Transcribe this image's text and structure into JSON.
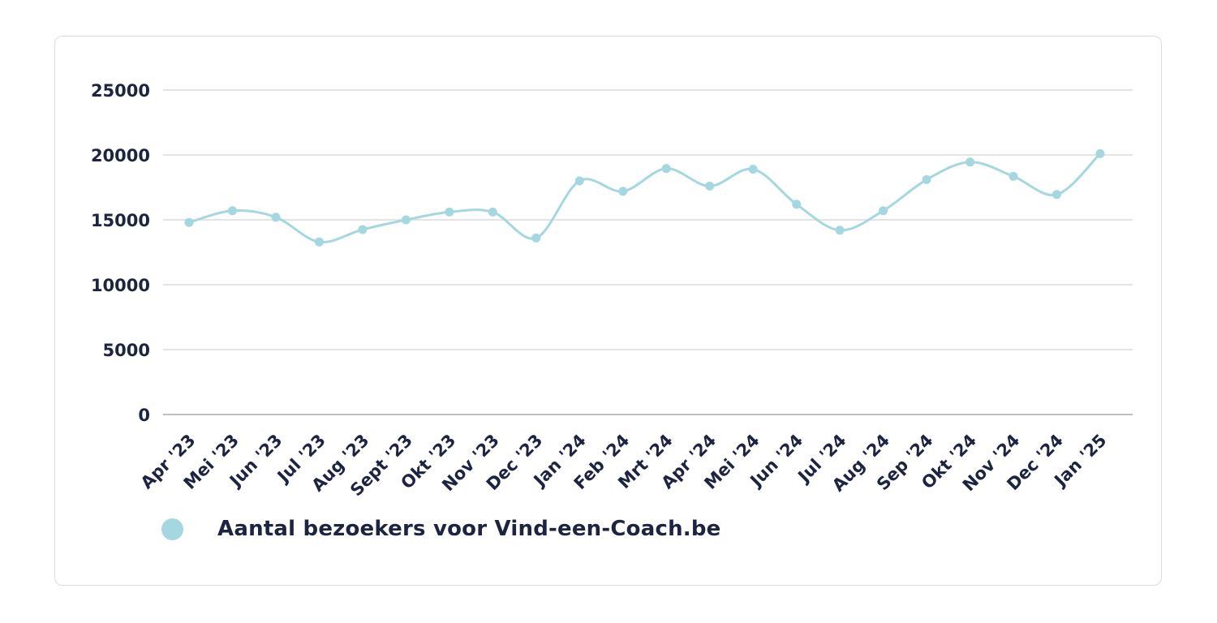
{
  "colors": {
    "line": "#a5d7e0",
    "text": "#1d2442",
    "grid": "#e4e4e4",
    "axis": "#bfbfbf",
    "card_border": "#dcdcdc"
  },
  "legend": {
    "label": "Aantal bezoekers voor Vind-een-Coach.be"
  },
  "chart_data": {
    "type": "line",
    "title": "",
    "xlabel": "",
    "ylabel": "",
    "categories": [
      "Apr '23",
      "Mei '23",
      "Jun '23",
      "Jul '23",
      "Aug '23",
      "Sept '23",
      "Okt '23",
      "Nov '23",
      "Dec '23",
      "Jan '24",
      "Feb '24",
      "Mrt '24",
      "Apr '24",
      "Mei '24",
      "Jun '24",
      "Jul '24",
      "Aug '24",
      "Sep '24",
      "Okt '24",
      "Nov '24",
      "Dec '24",
      "Jan '25"
    ],
    "series": [
      {
        "name": "Aantal bezoekers voor Vind-een-Coach.be",
        "values": [
          14800,
          15700,
          15200,
          13300,
          14250,
          15000,
          15600,
          15600,
          13600,
          18000,
          17200,
          18950,
          17600,
          18900,
          16200,
          14200,
          15700,
          18100,
          19450,
          18350,
          16950,
          20100
        ]
      }
    ],
    "ylim": [
      0,
      25000
    ],
    "yticks": [
      0,
      5000,
      10000,
      15000,
      20000,
      25000
    ],
    "grid": "horizontal",
    "smooth": true,
    "marker": "circle",
    "legend_position": "bottom-left"
  }
}
